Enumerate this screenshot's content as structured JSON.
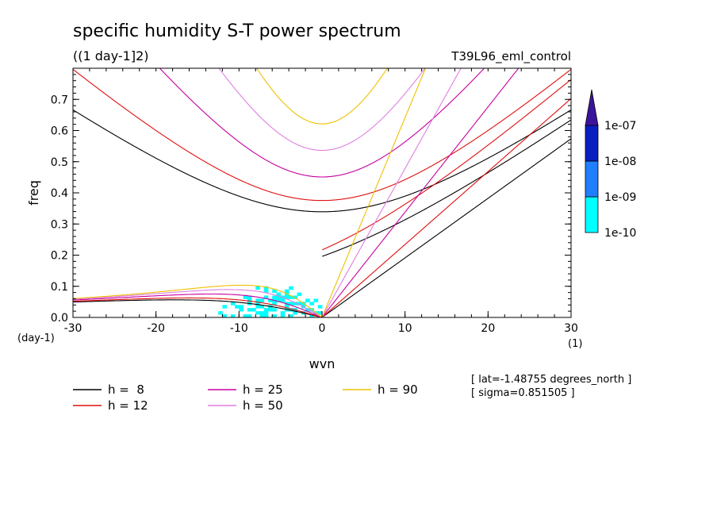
{
  "chart_data": {
    "type": "heatmap",
    "title": "specific humidity S-T power spectrum",
    "subtitle": "((1 day-1]2)",
    "run_label": "T39L96_eml_control",
    "xlabel": "wvn",
    "ylabel": "freq",
    "x_unit": "(1)",
    "y_unit": "(day-1)",
    "xlim": [
      -30,
      30
    ],
    "ylim": [
      0.0,
      0.8
    ],
    "x_ticks": [
      -30,
      -20,
      -10,
      0,
      10,
      20,
      30
    ],
    "x_tick_labels": [
      "-30",
      "-20",
      "-10",
      "0",
      "10",
      "20",
      "30"
    ],
    "y_ticks": [
      0.0,
      0.1,
      0.2,
      0.3,
      0.4,
      0.5,
      0.6,
      0.7
    ],
    "y_tick_labels": [
      "0.0",
      "0.1",
      "0.2",
      "0.3",
      "0.4",
      "0.5",
      "0.6",
      "0.7"
    ],
    "colorbar": {
      "levels": [
        "1e-10",
        "1e-09",
        "1e-08",
        "1e-07"
      ],
      "colors": [
        "#00ffff",
        "#1f7fff",
        "#0a1fbf",
        "#3c149c"
      ]
    },
    "dispersion_curves": [
      {
        "label": "h =  8",
        "h": 8,
        "color": "#000000"
      },
      {
        "label": "h = 12",
        "h": 12,
        "color": "#e01010"
      },
      {
        "label": "h = 25",
        "h": 25,
        "color": "#c800a0"
      },
      {
        "label": "h = 50",
        "h": 50,
        "color": "#e07fe0"
      },
      {
        "label": "h = 90",
        "h": 90,
        "color": "#f0c000"
      }
    ],
    "annotations": {
      "lat": "[ lat=-1.48755 degrees_north ]",
      "sigma": "[ sigma=0.851505 ]"
    }
  }
}
